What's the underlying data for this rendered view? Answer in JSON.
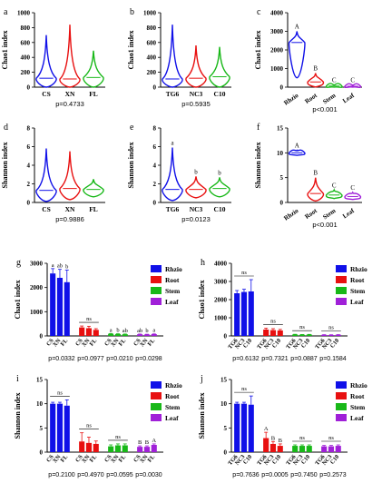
{
  "colors": {
    "rhzio": "#1010e8",
    "root": "#e81010",
    "stem": "#18b818",
    "leaf": "#a020d8",
    "text": "#000000"
  },
  "chart_data": [
    {
      "id": "a",
      "panel_label": "a",
      "type": "violin",
      "ylabel": "Chao1 index",
      "ylim": [
        0,
        1000
      ],
      "yticks": [
        0,
        200,
        400,
        600,
        800,
        1000
      ],
      "categories": [
        "CS",
        "XN",
        "FL"
      ],
      "series": [
        {
          "category": "CS",
          "color": "#1010e8",
          "max": 700,
          "median": 120
        },
        {
          "category": "XN",
          "color": "#e81010",
          "max": 840,
          "median": 110
        },
        {
          "category": "FL",
          "color": "#18b818",
          "max": 490,
          "median": 130
        }
      ],
      "pvalue": "p=0.4733"
    },
    {
      "id": "b",
      "panel_label": "b",
      "type": "violin",
      "ylabel": "Chao1 index",
      "ylim": [
        0,
        1000
      ],
      "yticks": [
        0,
        200,
        400,
        600,
        800,
        1000
      ],
      "categories": [
        "TG6",
        "NC3",
        "C10"
      ],
      "series": [
        {
          "category": "TG6",
          "color": "#1010e8",
          "max": 840,
          "median": 110
        },
        {
          "category": "NC3",
          "color": "#e81010",
          "max": 560,
          "median": 120
        },
        {
          "category": "C10",
          "color": "#18b818",
          "max": 540,
          "median": 140
        }
      ],
      "pvalue": "p=0.5935"
    },
    {
      "id": "c",
      "panel_label": "c",
      "type": "violin",
      "ylabel": "Chao1 index",
      "ylim": [
        0,
        4000
      ],
      "yticks": [
        0,
        1000,
        2000,
        3000,
        4000
      ],
      "categories": [
        "Rhzio",
        "Root",
        "Stem",
        "Leaf"
      ],
      "series": [
        {
          "category": "Rhzio",
          "color": "#1010e8",
          "max": 3000,
          "median": 2400,
          "min": 500,
          "letter": "A"
        },
        {
          "category": "Root",
          "color": "#e81010",
          "max": 750,
          "median": 280,
          "min": 10,
          "letter": "B"
        },
        {
          "category": "Stem",
          "color": "#18b818",
          "max": 120,
          "median": 60,
          "min": 0,
          "letter": "C"
        },
        {
          "category": "Leaf",
          "color": "#a020d8",
          "max": 110,
          "median": 50,
          "min": 0,
          "letter": "C"
        }
      ],
      "pvalue": "p<0.001"
    },
    {
      "id": "d",
      "panel_label": "d",
      "type": "violin",
      "ylabel": "Shannon index",
      "ylim": [
        0,
        8
      ],
      "yticks": [
        0,
        2,
        4,
        6,
        8
      ],
      "categories": [
        "CS",
        "XN",
        "FL"
      ],
      "series": [
        {
          "category": "CS",
          "color": "#1010e8",
          "max": 5.8,
          "median": 1.3,
          "min": 0.1
        },
        {
          "category": "XN",
          "color": "#e81010",
          "max": 5.5,
          "median": 1.5,
          "min": 0.3
        },
        {
          "category": "FL",
          "color": "#18b818",
          "max": 2.5,
          "median": 1.4,
          "min": 0.6
        }
      ],
      "pvalue": "p=0.9886"
    },
    {
      "id": "e",
      "panel_label": "e",
      "type": "violin",
      "ylabel": "Shannon index",
      "ylim": [
        0,
        8
      ],
      "yticks": [
        0,
        2,
        4,
        6,
        8
      ],
      "categories": [
        "TG6",
        "NC3",
        "C10"
      ],
      "series": [
        {
          "category": "TG6",
          "color": "#1010e8",
          "max": 5.9,
          "median": 1.4,
          "min": 0.2,
          "letter": "a"
        },
        {
          "category": "NC3",
          "color": "#e81010",
          "max": 2.8,
          "median": 1.4,
          "min": 0.5,
          "letter": "b"
        },
        {
          "category": "C10",
          "color": "#18b818",
          "max": 2.7,
          "median": 1.5,
          "min": 0.6,
          "letter": "b"
        }
      ],
      "pvalue": "p=0.0123"
    },
    {
      "id": "f",
      "panel_label": "f",
      "type": "violin",
      "ylabel": "Shannon index",
      "ylim": [
        0,
        15
      ],
      "yticks": [
        0,
        5,
        10,
        15
      ],
      "categories": [
        "Rhzio",
        "Root",
        "Stem",
        "Leaf"
      ],
      "series": [
        {
          "category": "Rhzio",
          "color": "#1010e8",
          "max": 10.5,
          "median": 10,
          "min": 9.5,
          "letter": "A"
        },
        {
          "category": "Root",
          "color": "#e81010",
          "max": 5,
          "median": 1.8,
          "min": 0.3,
          "letter": "B"
        },
        {
          "category": "Stem",
          "color": "#18b818",
          "max": 2.5,
          "median": 1.5,
          "min": 0.8,
          "letter": "C"
        },
        {
          "category": "Leaf",
          "color": "#a020d8",
          "max": 2,
          "median": 1.2,
          "min": 0.6,
          "letter": "C"
        }
      ],
      "pvalue": "p<0.001"
    },
    {
      "id": "g",
      "panel_label": "g",
      "type": "bar",
      "ylabel": "Chao1 index",
      "ylim": [
        0,
        3000
      ],
      "yticks": [
        0,
        1000,
        2000,
        3000
      ],
      "categories": [
        "CS",
        "XN",
        "FL"
      ],
      "legend": [
        "Rhzio",
        "Root",
        "Stem",
        "Leaf"
      ],
      "groups": [
        {
          "color": "#1010e8",
          "values": [
            2580,
            2400,
            2220
          ],
          "errors": [
            200,
            350,
            500
          ],
          "letters": [
            "a",
            "ab",
            "b"
          ],
          "pvalue": "p=0.0332"
        },
        {
          "color": "#e81010",
          "values": [
            350,
            320,
            250
          ],
          "errors": [
            60,
            80,
            50
          ],
          "annot": "ns",
          "pvalue": "p=0.0977"
        },
        {
          "color": "#18b818",
          "values": [
            90,
            80,
            70
          ],
          "errors": [
            10,
            10,
            10
          ],
          "letters": [
            "a",
            "b",
            "ab"
          ],
          "pvalue": "p=0.0210"
        },
        {
          "color": "#a020d8",
          "values": [
            70,
            60,
            75
          ],
          "errors": [
            10,
            10,
            10
          ],
          "letters": [
            "ab",
            "b",
            "a"
          ],
          "pvalue": "p=0.0298"
        }
      ]
    },
    {
      "id": "h",
      "panel_label": "h",
      "type": "bar",
      "ylabel": "Chao1 index",
      "ylim": [
        0,
        4000
      ],
      "yticks": [
        0,
        1000,
        2000,
        3000,
        4000
      ],
      "categories": [
        "TG6",
        "NC3",
        "C10"
      ],
      "legend": [
        "Rhzio",
        "Root",
        "Stem",
        "Leaf"
      ],
      "groups": [
        {
          "color": "#1010e8",
          "values": [
            2350,
            2420,
            2450
          ],
          "errors": [
            150,
            150,
            650
          ],
          "annot": "ns",
          "pvalue": "p=0.6132"
        },
        {
          "color": "#e81010",
          "values": [
            350,
            320,
            300
          ],
          "errors": [
            80,
            80,
            60
          ],
          "annot": "ns",
          "pvalue": "p=0.7321"
        },
        {
          "color": "#18b818",
          "values": [
            80,
            70,
            75
          ],
          "errors": [
            10,
            10,
            10
          ],
          "annot": "ns",
          "pvalue": "p=0.0887"
        },
        {
          "color": "#a020d8",
          "values": [
            60,
            55,
            65
          ],
          "errors": [
            10,
            10,
            10
          ],
          "annot": "ns",
          "pvalue": "p=0.1584"
        }
      ]
    },
    {
      "id": "i",
      "panel_label": "i",
      "type": "bar",
      "ylabel": "Shannon index",
      "ylim": [
        0,
        15
      ],
      "yticks": [
        0,
        5,
        10,
        15
      ],
      "categories": [
        "CS",
        "XN",
        "FL"
      ],
      "legend": [
        "Rhzio",
        "Root",
        "Stem",
        "Leaf"
      ],
      "groups": [
        {
          "color": "#1010e8",
          "values": [
            10,
            10,
            9.6
          ],
          "errors": [
            0.3,
            0.3,
            1.2
          ],
          "annot": "ns",
          "pvalue": "p=0.2100"
        },
        {
          "color": "#e81010",
          "values": [
            2.2,
            1.9,
            1.7
          ],
          "errors": [
            1.8,
            1.2,
            0.6
          ],
          "annot": "ns",
          "pvalue": "p=0.4970"
        },
        {
          "color": "#18b818",
          "values": [
            1.2,
            1.4,
            1.4
          ],
          "errors": [
            0.3,
            0.3,
            0.3
          ],
          "annot": "ns",
          "pvalue": "p=0.0595"
        },
        {
          "color": "#a020d8",
          "values": [
            1.1,
            1.1,
            1.5
          ],
          "errors": [
            0.2,
            0.2,
            0.2
          ],
          "letters": [
            "B",
            "B",
            "A"
          ],
          "pvalue": "p=0.0030"
        }
      ]
    },
    {
      "id": "j",
      "panel_label": "j",
      "type": "bar",
      "ylabel": "Shannon index",
      "ylim": [
        0,
        15
      ],
      "yticks": [
        0,
        5,
        10,
        15
      ],
      "categories": [
        "TG6",
        "NC3",
        "C10"
      ],
      "legend": [
        "Rhzio",
        "Root",
        "Stem",
        "Leaf"
      ],
      "groups": [
        {
          "color": "#1010e8",
          "values": [
            10,
            10,
            9.8
          ],
          "errors": [
            0.3,
            0.3,
            1.8
          ],
          "annot": "ns",
          "pvalue": "p=0.7636"
        },
        {
          "color": "#e81010",
          "values": [
            2.9,
            1.7,
            1.3
          ],
          "errors": [
            1.2,
            0.5,
            0.4
          ],
          "letters": [
            "A",
            "B",
            "B"
          ],
          "pvalue": "p=0.0005"
        },
        {
          "color": "#18b818",
          "values": [
            1.3,
            1.3,
            1.3
          ],
          "errors": [
            0.2,
            0.2,
            0.2
          ],
          "annot": "ns",
          "pvalue": "p=0.7450"
        },
        {
          "color": "#a020d8",
          "values": [
            1.2,
            1.2,
            1.3
          ],
          "errors": [
            0.2,
            0.2,
            0.2
          ],
          "annot": "ns",
          "pvalue": "p=0.2573"
        }
      ]
    }
  ]
}
